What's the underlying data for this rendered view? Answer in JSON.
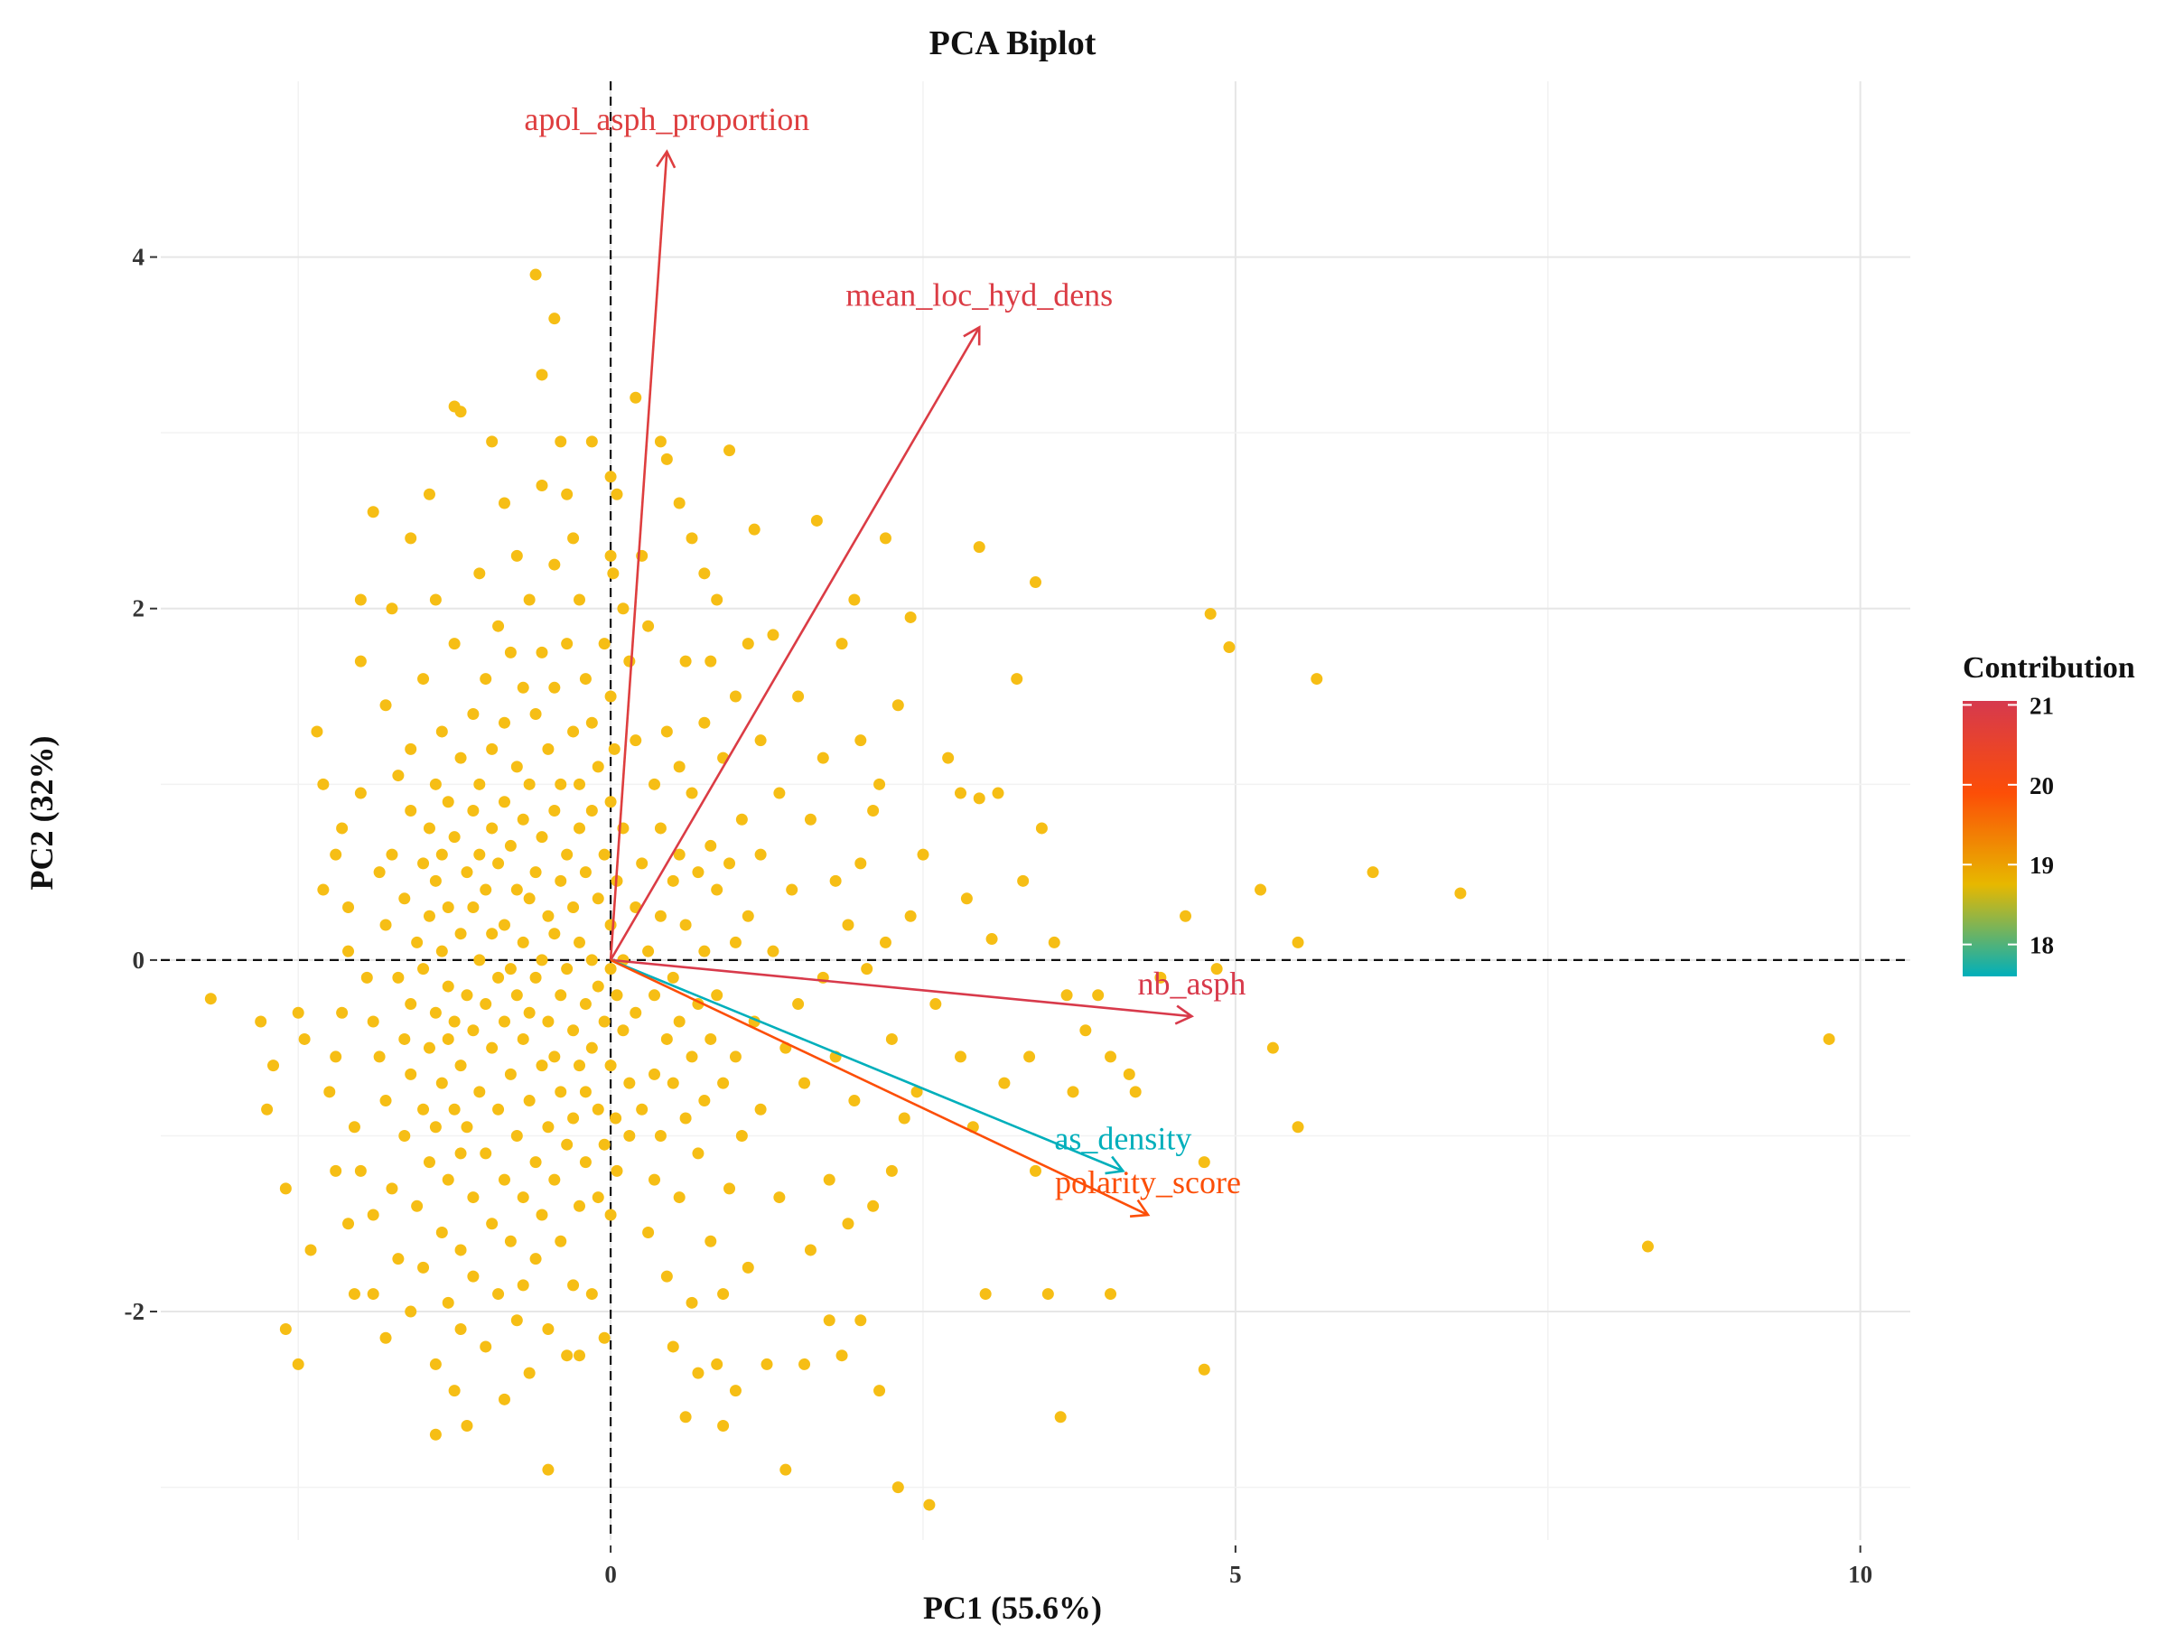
{
  "chart_data": {
    "type": "scatter",
    "title": "PCA Biplot",
    "xlabel": "PC1 (55.6%)",
    "ylabel": "PC2 (32%)",
    "xlim": [
      -3.6,
      10.4
    ],
    "ylim": [
      -3.3,
      5.0
    ],
    "xticks": [
      0,
      5,
      10
    ],
    "yticks": [
      -2,
      0,
      2,
      4
    ],
    "grid": true,
    "reference_lines": {
      "x": 0,
      "y": 0,
      "style": "dashed"
    },
    "point_color": "#F6BE15",
    "points": [
      [
        -3.2,
        -0.22
      ],
      [
        -2.8,
        -0.35
      ],
      [
        -2.7,
        -0.6
      ],
      [
        -2.75,
        -0.85
      ],
      [
        -2.6,
        -1.3
      ],
      [
        -2.6,
        -2.1
      ],
      [
        -2.5,
        -2.3
      ],
      [
        -2.5,
        -0.3
      ],
      [
        -2.45,
        -0.45
      ],
      [
        -2.4,
        -1.65
      ],
      [
        -2.35,
        1.3
      ],
      [
        -2.3,
        1.0
      ],
      [
        -2.3,
        0.4
      ],
      [
        -2.25,
        -0.75
      ],
      [
        -2.2,
        -0.55
      ],
      [
        -2.2,
        0.6
      ],
      [
        -2.2,
        -1.2
      ],
      [
        -2.15,
        0.75
      ],
      [
        -2.15,
        -0.3
      ],
      [
        -2.1,
        0.3
      ],
      [
        -2.1,
        0.05
      ],
      [
        -2.1,
        -1.5
      ],
      [
        -2.05,
        -0.95
      ],
      [
        -2.0,
        2.05
      ],
      [
        -2.0,
        1.7
      ],
      [
        -2.0,
        0.95
      ],
      [
        -2.0,
        -1.2
      ],
      [
        -1.95,
        -0.1
      ],
      [
        -1.9,
        2.55
      ],
      [
        -1.9,
        -0.35
      ],
      [
        -1.9,
        -1.9
      ],
      [
        -1.85,
        0.5
      ],
      [
        -1.85,
        -0.55
      ],
      [
        -1.8,
        1.45
      ],
      [
        -1.8,
        0.2
      ],
      [
        -1.8,
        -0.8
      ],
      [
        -1.8,
        -2.15
      ],
      [
        -1.75,
        2.0
      ],
      [
        -1.75,
        0.6
      ],
      [
        -1.75,
        -1.3
      ],
      [
        -1.7,
        1.05
      ],
      [
        -1.7,
        -0.1
      ],
      [
        -1.7,
        -1.7
      ],
      [
        -1.65,
        0.35
      ],
      [
        -1.65,
        -0.45
      ],
      [
        -1.65,
        -1.0
      ],
      [
        -1.6,
        2.4
      ],
      [
        -1.6,
        1.2
      ],
      [
        -1.6,
        0.85
      ],
      [
        -1.6,
        -0.25
      ],
      [
        -1.6,
        -0.65
      ],
      [
        -1.6,
        -2.0
      ],
      [
        -1.55,
        0.1
      ],
      [
        -1.55,
        -1.4
      ],
      [
        -1.5,
        1.6
      ],
      [
        -1.5,
        0.55
      ],
      [
        -1.5,
        -0.05
      ],
      [
        -1.5,
        -0.85
      ],
      [
        -1.5,
        -1.75
      ],
      [
        -1.45,
        2.65
      ],
      [
        -1.45,
        0.75
      ],
      [
        -1.45,
        0.25
      ],
      [
        -1.45,
        -0.5
      ],
      [
        -1.45,
        -1.15
      ],
      [
        -1.4,
        2.05
      ],
      [
        -1.4,
        1.0
      ],
      [
        -1.4,
        0.45
      ],
      [
        -1.4,
        -0.3
      ],
      [
        -1.4,
        -0.95
      ],
      [
        -1.4,
        -2.3
      ],
      [
        -1.4,
        -2.7
      ],
      [
        -1.35,
        1.3
      ],
      [
        -1.35,
        0.6
      ],
      [
        -1.35,
        0.05
      ],
      [
        -1.35,
        -0.7
      ],
      [
        -1.35,
        -1.55
      ],
      [
        -1.3,
        0.9
      ],
      [
        -1.3,
        0.3
      ],
      [
        -1.3,
        -0.15
      ],
      [
        -1.3,
        -0.45
      ],
      [
        -1.3,
        -1.25
      ],
      [
        -1.3,
        -1.95
      ],
      [
        -1.25,
        3.15
      ],
      [
        -1.25,
        1.8
      ],
      [
        -1.25,
        0.7
      ],
      [
        -1.25,
        -0.35
      ],
      [
        -1.25,
        -0.85
      ],
      [
        -1.25,
        -2.45
      ],
      [
        -1.2,
        3.12
      ],
      [
        -1.2,
        1.15
      ],
      [
        -1.2,
        0.15
      ],
      [
        -1.2,
        -0.6
      ],
      [
        -1.2,
        -1.1
      ],
      [
        -1.2,
        -1.65
      ],
      [
        -1.2,
        -2.1
      ],
      [
        -1.15,
        0.5
      ],
      [
        -1.15,
        -0.2
      ],
      [
        -1.15,
        -0.95
      ],
      [
        -1.15,
        -2.65
      ],
      [
        -1.1,
        1.4
      ],
      [
        -1.1,
        0.85
      ],
      [
        -1.1,
        0.3
      ],
      [
        -1.1,
        -0.4
      ],
      [
        -1.1,
        -1.35
      ],
      [
        -1.1,
        -1.8
      ],
      [
        -1.05,
        2.2
      ],
      [
        -1.05,
        1.0
      ],
      [
        -1.05,
        0.6
      ],
      [
        -1.05,
        0.0
      ],
      [
        -1.05,
        -0.75
      ],
      [
        -1.0,
        1.6
      ],
      [
        -1.0,
        0.4
      ],
      [
        -1.0,
        -0.25
      ],
      [
        -1.0,
        -1.1
      ],
      [
        -1.0,
        -2.2
      ],
      [
        -0.95,
        2.95
      ],
      [
        -0.95,
        1.2
      ],
      [
        -0.95,
        0.75
      ],
      [
        -0.95,
        0.15
      ],
      [
        -0.95,
        -0.5
      ],
      [
        -0.95,
        -1.5
      ],
      [
        -0.9,
        1.9
      ],
      [
        -0.9,
        0.55
      ],
      [
        -0.9,
        -0.1
      ],
      [
        -0.9,
        -0.85
      ],
      [
        -0.9,
        -1.9
      ],
      [
        -0.85,
        2.6
      ],
      [
        -0.85,
        1.35
      ],
      [
        -0.85,
        0.9
      ],
      [
        -0.85,
        0.2
      ],
      [
        -0.85,
        -0.35
      ],
      [
        -0.85,
        -1.25
      ],
      [
        -0.85,
        -2.5
      ],
      [
        -0.8,
        1.75
      ],
      [
        -0.8,
        0.65
      ],
      [
        -0.8,
        -0.05
      ],
      [
        -0.8,
        -0.65
      ],
      [
        -0.8,
        -1.6
      ],
      [
        -0.75,
        2.3
      ],
      [
        -0.75,
        1.1
      ],
      [
        -0.75,
        0.4
      ],
      [
        -0.75,
        -0.2
      ],
      [
        -0.75,
        -1.0
      ],
      [
        -0.75,
        -2.05
      ],
      [
        -0.7,
        1.55
      ],
      [
        -0.7,
        0.8
      ],
      [
        -0.7,
        0.1
      ],
      [
        -0.7,
        -0.45
      ],
      [
        -0.7,
        -1.35
      ],
      [
        -0.7,
        -1.85
      ],
      [
        -0.65,
        2.05
      ],
      [
        -0.65,
        1.0
      ],
      [
        -0.65,
        0.35
      ],
      [
        -0.65,
        -0.3
      ],
      [
        -0.65,
        -0.8
      ],
      [
        -0.65,
        -2.35
      ],
      [
        -0.6,
        3.9
      ],
      [
        -0.6,
        1.4
      ],
      [
        -0.6,
        0.5
      ],
      [
        -0.6,
        -0.1
      ],
      [
        -0.6,
        -1.15
      ],
      [
        -0.6,
        -1.7
      ],
      [
        -0.55,
        3.33
      ],
      [
        -0.55,
        2.7
      ],
      [
        -0.55,
        1.75
      ],
      [
        -0.55,
        0.7
      ],
      [
        -0.55,
        0.0
      ],
      [
        -0.55,
        -0.6
      ],
      [
        -0.55,
        -1.45
      ],
      [
        -0.5,
        1.2
      ],
      [
        -0.5,
        0.25
      ],
      [
        -0.5,
        -0.35
      ],
      [
        -0.5,
        -0.95
      ],
      [
        -0.5,
        -2.1
      ],
      [
        -0.5,
        -2.9
      ],
      [
        -0.45,
        3.65
      ],
      [
        -0.45,
        2.25
      ],
      [
        -0.45,
        1.55
      ],
      [
        -0.45,
        0.85
      ],
      [
        -0.45,
        0.15
      ],
      [
        -0.45,
        -0.55
      ],
      [
        -0.45,
        -1.25
      ],
      [
        -0.4,
        2.95
      ],
      [
        -0.4,
        1.0
      ],
      [
        -0.4,
        0.45
      ],
      [
        -0.4,
        -0.2
      ],
      [
        -0.4,
        -0.75
      ],
      [
        -0.4,
        -1.6
      ],
      [
        -0.35,
        2.65
      ],
      [
        -0.35,
        1.8
      ],
      [
        -0.35,
        0.6
      ],
      [
        -0.35,
        -0.05
      ],
      [
        -0.35,
        -1.05
      ],
      [
        -0.35,
        -2.25
      ],
      [
        -0.3,
        2.4
      ],
      [
        -0.3,
        1.3
      ],
      [
        -0.3,
        0.3
      ],
      [
        -0.3,
        -0.4
      ],
      [
        -0.3,
        -0.9
      ],
      [
        -0.3,
        -1.85
      ],
      [
        -0.25,
        2.05
      ],
      [
        -0.25,
        1.0
      ],
      [
        -0.25,
        0.75
      ],
      [
        -0.25,
        0.1
      ],
      [
        -0.25,
        -0.6
      ],
      [
        -0.25,
        -1.4
      ],
      [
        -0.25,
        -2.25
      ],
      [
        -0.2,
        1.6
      ],
      [
        -0.2,
        0.5
      ],
      [
        -0.2,
        -0.25
      ],
      [
        -0.2,
        -0.75
      ],
      [
        -0.2,
        -1.15
      ],
      [
        -0.15,
        2.95
      ],
      [
        -0.15,
        1.35
      ],
      [
        -0.15,
        0.85
      ],
      [
        -0.15,
        0.0
      ],
      [
        -0.15,
        -0.5
      ],
      [
        -0.15,
        -1.9
      ],
      [
        -0.1,
        1.1
      ],
      [
        -0.1,
        0.35
      ],
      [
        -0.1,
        -0.15
      ],
      [
        -0.1,
        -0.85
      ],
      [
        -0.1,
        -1.35
      ],
      [
        -0.05,
        1.8
      ],
      [
        -0.05,
        0.6
      ],
      [
        -0.05,
        -0.35
      ],
      [
        -0.05,
        -1.05
      ],
      [
        -0.05,
        -2.15
      ],
      [
        0.0,
        2.75
      ],
      [
        0.0,
        2.3
      ],
      [
        0.0,
        1.5
      ],
      [
        0.0,
        0.9
      ],
      [
        0.0,
        0.2
      ],
      [
        0.0,
        -0.05
      ],
      [
        0.0,
        -0.6
      ],
      [
        0.0,
        -1.45
      ],
      [
        0.02,
        2.2
      ],
      [
        0.03,
        1.2
      ],
      [
        0.04,
        -0.9
      ],
      [
        0.05,
        2.65
      ],
      [
        0.05,
        0.45
      ],
      [
        0.05,
        -0.2
      ],
      [
        0.05,
        -1.2
      ],
      [
        0.1,
        2.0
      ],
      [
        0.1,
        0.75
      ],
      [
        0.1,
        0.0
      ],
      [
        0.1,
        -0.4
      ],
      [
        0.15,
        1.7
      ],
      [
        0.15,
        -0.7
      ],
      [
        0.15,
        -1.0
      ],
      [
        0.2,
        3.2
      ],
      [
        0.2,
        1.25
      ],
      [
        0.2,
        0.3
      ],
      [
        0.2,
        -0.3
      ],
      [
        0.25,
        2.3
      ],
      [
        0.25,
        0.55
      ],
      [
        0.25,
        -0.85
      ],
      [
        0.3,
        1.9
      ],
      [
        0.3,
        0.05
      ],
      [
        0.3,
        -1.55
      ],
      [
        0.35,
        1.0
      ],
      [
        0.35,
        -0.2
      ],
      [
        0.35,
        -0.65
      ],
      [
        0.35,
        -1.25
      ],
      [
        0.4,
        2.95
      ],
      [
        0.4,
        0.75
      ],
      [
        0.4,
        0.25
      ],
      [
        0.4,
        -1.0
      ],
      [
        0.45,
        2.85
      ],
      [
        0.45,
        1.3
      ],
      [
        0.45,
        -0.45
      ],
      [
        0.45,
        -1.8
      ],
      [
        0.5,
        0.45
      ],
      [
        0.5,
        -0.1
      ],
      [
        0.5,
        -0.7
      ],
      [
        0.5,
        -2.2
      ],
      [
        0.55,
        2.6
      ],
      [
        0.55,
        1.1
      ],
      [
        0.55,
        0.6
      ],
      [
        0.55,
        -0.35
      ],
      [
        0.55,
        -1.35
      ],
      [
        0.6,
        1.7
      ],
      [
        0.6,
        0.2
      ],
      [
        0.6,
        -0.9
      ],
      [
        0.6,
        -2.6
      ],
      [
        0.65,
        2.4
      ],
      [
        0.65,
        0.95
      ],
      [
        0.65,
        -0.55
      ],
      [
        0.7,
        0.5
      ],
      [
        0.7,
        -0.25
      ],
      [
        0.7,
        -1.1
      ],
      [
        0.7,
        -2.35
      ],
      [
        0.75,
        2.2
      ],
      [
        0.75,
        1.35
      ],
      [
        0.75,
        0.05
      ],
      [
        0.75,
        -0.8
      ],
      [
        0.8,
        1.7
      ],
      [
        0.8,
        0.65
      ],
      [
        0.8,
        -0.45
      ],
      [
        0.8,
        -1.6
      ],
      [
        0.85,
        2.05
      ],
      [
        0.85,
        0.4
      ],
      [
        0.85,
        -0.2
      ],
      [
        0.85,
        -2.3
      ],
      [
        0.9,
        1.15
      ],
      [
        0.9,
        -0.7
      ],
      [
        0.9,
        -2.65
      ],
      [
        0.95,
        2.9
      ],
      [
        0.95,
        0.55
      ],
      [
        0.95,
        -1.3
      ],
      [
        1.0,
        1.5
      ],
      [
        1.0,
        0.1
      ],
      [
        1.0,
        -0.55
      ],
      [
        1.0,
        -2.45
      ],
      [
        1.05,
        0.8
      ],
      [
        1.05,
        -1.0
      ],
      [
        1.1,
        1.8
      ],
      [
        1.1,
        0.25
      ],
      [
        1.1,
        -1.75
      ],
      [
        1.15,
        2.45
      ],
      [
        1.15,
        -0.35
      ],
      [
        1.2,
        1.25
      ],
      [
        1.2,
        0.6
      ],
      [
        1.2,
        -0.85
      ],
      [
        1.25,
        -2.3
      ],
      [
        1.3,
        1.85
      ],
      [
        1.3,
        0.05
      ],
      [
        1.35,
        0.95
      ],
      [
        1.35,
        -1.35
      ],
      [
        1.4,
        -0.5
      ],
      [
        1.4,
        -2.9
      ],
      [
        1.45,
        0.4
      ],
      [
        1.5,
        1.5
      ],
      [
        1.5,
        -0.25
      ],
      [
        1.55,
        -0.7
      ],
      [
        1.55,
        -2.3
      ],
      [
        1.6,
        0.8
      ],
      [
        1.6,
        -1.65
      ],
      [
        1.65,
        2.5
      ],
      [
        1.7,
        1.15
      ],
      [
        1.7,
        -0.1
      ],
      [
        1.75,
        -1.25
      ],
      [
        1.75,
        -2.05
      ],
      [
        1.8,
        0.45
      ],
      [
        1.8,
        -0.55
      ],
      [
        1.85,
        1.8
      ],
      [
        1.85,
        -2.25
      ],
      [
        1.9,
        0.2
      ],
      [
        1.9,
        -1.5
      ],
      [
        1.95,
        2.05
      ],
      [
        1.95,
        -0.8
      ],
      [
        2.0,
        1.25
      ],
      [
        2.0,
        0.55
      ],
      [
        2.0,
        -2.05
      ],
      [
        2.05,
        -0.05
      ],
      [
        2.1,
        0.85
      ],
      [
        2.1,
        -1.4
      ],
      [
        2.15,
        1.0
      ],
      [
        2.15,
        -2.45
      ],
      [
        2.2,
        2.4
      ],
      [
        2.2,
        0.1
      ],
      [
        2.25,
        -0.45
      ],
      [
        2.25,
        -1.2
      ],
      [
        2.3,
        1.45
      ],
      [
        2.3,
        -3.0
      ],
      [
        2.35,
        -0.9
      ],
      [
        2.4,
        1.95
      ],
      [
        2.4,
        0.25
      ],
      [
        2.45,
        -0.75
      ],
      [
        2.5,
        0.6
      ],
      [
        2.55,
        -3.1
      ],
      [
        2.6,
        -0.25
      ],
      [
        2.7,
        1.15
      ],
      [
        2.8,
        -0.55
      ],
      [
        2.85,
        0.35
      ],
      [
        2.9,
        -0.95
      ],
      [
        2.95,
        2.35
      ],
      [
        2.95,
        0.92
      ],
      [
        3.0,
        -1.9
      ],
      [
        3.05,
        0.12
      ],
      [
        3.1,
        0.95
      ],
      [
        3.15,
        -0.7
      ],
      [
        3.25,
        1.6
      ],
      [
        3.3,
        0.45
      ],
      [
        3.35,
        -0.55
      ],
      [
        3.4,
        2.15
      ],
      [
        3.45,
        0.75
      ],
      [
        3.5,
        -1.9
      ],
      [
        3.55,
        0.1
      ],
      [
        3.65,
        -0.2
      ],
      [
        3.7,
        -0.75
      ],
      [
        3.8,
        -0.4
      ],
      [
        3.9,
        -0.2
      ],
      [
        4.0,
        -0.55
      ],
      [
        4.0,
        -1.9
      ],
      [
        4.15,
        -0.65
      ],
      [
        4.2,
        -0.75
      ],
      [
        4.4,
        -0.1
      ],
      [
        4.6,
        0.25
      ],
      [
        4.75,
        -1.15
      ],
      [
        4.75,
        -2.33
      ],
      [
        4.8,
        1.97
      ],
      [
        4.85,
        -0.05
      ],
      [
        4.95,
        1.78
      ],
      [
        5.2,
        0.4
      ],
      [
        5.3,
        -0.5
      ],
      [
        5.5,
        0.1
      ],
      [
        5.5,
        -0.95
      ],
      [
        5.65,
        1.6
      ],
      [
        6.1,
        0.5
      ],
      [
        6.8,
        0.38
      ],
      [
        8.3,
        -1.63
      ],
      [
        9.75,
        -0.45
      ],
      [
        -1.9,
        -1.45
      ],
      [
        -2.05,
        -1.9
      ],
      [
        0.65,
        -1.95
      ],
      [
        3.6,
        -2.6
      ],
      [
        0.9,
        -1.9
      ],
      [
        3.4,
        -1.2
      ],
      [
        2.8,
        0.95
      ]
    ],
    "loadings": [
      {
        "name": "apol_asph_proportion",
        "x": 0.45,
        "y": 4.6,
        "contribution": 20.8
      },
      {
        "name": "mean_loc_hyd_dens",
        "x": 2.95,
        "y": 3.6,
        "contribution": 20.9
      },
      {
        "name": "nb_asph",
        "x": 4.65,
        "y": -0.32,
        "contribution": 21.0
      },
      {
        "name": "as_density",
        "x": 4.1,
        "y": -1.2,
        "contribution": 17.6
      },
      {
        "name": "polarity_score",
        "x": 4.3,
        "y": -1.45,
        "contribution": 19.9
      }
    ],
    "legend": {
      "title": "Contribution",
      "position": "right",
      "range": [
        17.6,
        21.05
      ],
      "ticks": [
        "21",
        "20",
        "19",
        "18"
      ],
      "tick_values": [
        21,
        20,
        19,
        18
      ],
      "gradient": [
        "#00AFBB",
        "#E7B800",
        "#FC4E07",
        "#D6394E"
      ]
    }
  }
}
